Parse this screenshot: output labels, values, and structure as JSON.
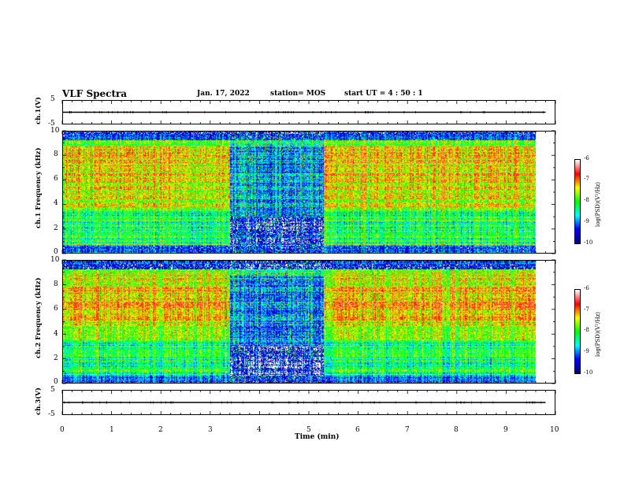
{
  "header": {
    "title": "VLF Spectra",
    "date": "Jan. 17, 2022",
    "station": "station= MOS",
    "start_ut": "start UT =  4 : 50 : 1"
  },
  "chart_data": [
    {
      "type": "line",
      "panel": "ch.1(V)",
      "ylabel": "ch.1(V)",
      "ylim": [
        -5,
        5
      ],
      "yticks": [
        "5",
        "-5"
      ],
      "x": [
        0,
        9.8
      ],
      "values": [
        0,
        0
      ],
      "grid": false
    },
    {
      "type": "heatmap",
      "panel": "ch.1 spectrogram",
      "ylabel": "ch.1  Frequency  (kHz)",
      "xlim": [
        0,
        10
      ],
      "ylim": [
        0,
        10
      ],
      "yticks": [
        "0",
        "2",
        "4",
        "6",
        "8",
        "10"
      ],
      "data_end_min": 9.8,
      "low_intensity_interval_min": [
        3.45,
        5.4
      ],
      "colorbar": {
        "label": "log(PSD)(V²/Hz)",
        "range": [
          -10,
          -6
        ],
        "ticks": [
          "-6",
          "-7",
          "-8",
          "-9",
          "-10"
        ]
      }
    },
    {
      "type": "heatmap",
      "panel": "ch.2 spectrogram",
      "ylabel": "ch.2  Frequency  (kHz)",
      "xlim": [
        0,
        10
      ],
      "ylim": [
        0,
        10
      ],
      "yticks": [
        "0",
        "2",
        "4",
        "6",
        "8",
        "10"
      ],
      "data_end_min": 9.8,
      "low_intensity_interval_min": [
        3.45,
        5.4
      ],
      "colorbar": {
        "label": "log(PSD)(V²/Hz)",
        "range": [
          -10,
          -6
        ],
        "ticks": [
          "-6",
          "-7",
          "-8",
          "-9",
          "-10"
        ]
      }
    },
    {
      "type": "line",
      "panel": "ch.3(V)",
      "ylabel": "ch.3(V)",
      "ylim": [
        -5,
        5
      ],
      "yticks": [
        "5",
        "-5"
      ],
      "x": [
        0,
        9.8
      ],
      "values": [
        0,
        0
      ],
      "grid": false
    }
  ],
  "xaxis": {
    "label": "Time  (min)",
    "ticks": [
      "0",
      "1",
      "2",
      "3",
      "4",
      "5",
      "6",
      "7",
      "8",
      "9",
      "10"
    ],
    "range": [
      0,
      10
    ]
  },
  "colors": {
    "colormap": [
      "#000080",
      "#0000ff",
      "#00ffff",
      "#00ff00",
      "#ffff00",
      "#ff0000",
      "#ffffff"
    ]
  }
}
